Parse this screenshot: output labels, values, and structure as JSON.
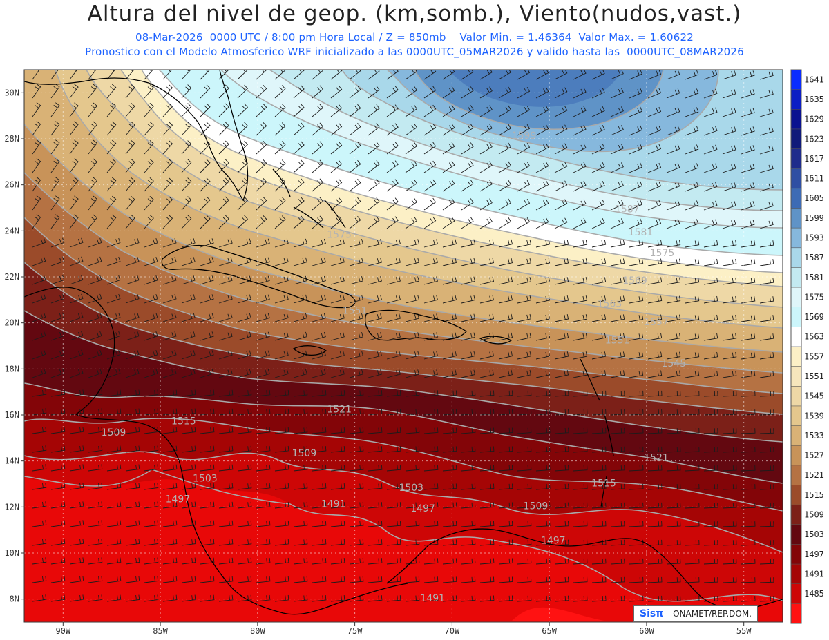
{
  "header": {
    "title": "Altura del nivel de geop. (km,somb.), Viento(nudos,vast.)",
    "line1": "08-Mar-2026  0000 UTC / 8:00 pm Hora Local / Z = 850mb    Valor Min. = 1.46364  Valor Max. = 1.60622",
    "line2": "Pronostico con el Modelo Atmosferico WRF inicializado a las 0000UTC_05MAR2026 y valido hasta las  0000UTC_08MAR2026"
  },
  "map_data": {
    "type": "contour-map",
    "level": "850mb",
    "lon_range": [
      -92,
      -53
    ],
    "lat_range": [
      7,
      31
    ],
    "lon_ticks": [
      "90W",
      "85W",
      "80W",
      "75W",
      "70W",
      "65W",
      "60W",
      "55W"
    ],
    "lat_ticks": [
      "30N",
      "28N",
      "26N",
      "24N",
      "22N",
      "20N",
      "18N",
      "16N",
      "14N",
      "12N",
      "10N",
      "8N"
    ],
    "grid": true,
    "contour_labels": [
      {
        "lon": -61.0,
        "lat": 24.8,
        "text": "1587"
      },
      {
        "lon": -66.3,
        "lat": 28.0,
        "text": "1599"
      },
      {
        "lon": -60.3,
        "lat": 23.8,
        "text": "1581"
      },
      {
        "lon": -59.2,
        "lat": 22.9,
        "text": "1575"
      },
      {
        "lon": -75.8,
        "lat": 23.7,
        "text": "1575"
      },
      {
        "lon": -60.6,
        "lat": 21.7,
        "text": "1569"
      },
      {
        "lon": -61.9,
        "lat": 20.7,
        "text": "1563"
      },
      {
        "lon": -59.5,
        "lat": 19.9,
        "text": "1557"
      },
      {
        "lon": -61.5,
        "lat": 19.1,
        "text": "1551"
      },
      {
        "lon": -75.0,
        "lat": 20.4,
        "text": "1551"
      },
      {
        "lon": -58.6,
        "lat": 18.1,
        "text": "1545"
      },
      {
        "lon": -75.8,
        "lat": 16.1,
        "text": "1521"
      },
      {
        "lon": -59.5,
        "lat": 14.0,
        "text": "1521"
      },
      {
        "lon": -62.2,
        "lat": 12.9,
        "text": "1515"
      },
      {
        "lon": -83.8,
        "lat": 15.6,
        "text": "1515"
      },
      {
        "lon": -87.4,
        "lat": 15.1,
        "text": "1509"
      },
      {
        "lon": -77.6,
        "lat": 14.2,
        "text": "1509"
      },
      {
        "lon": -65.7,
        "lat": 11.9,
        "text": "1509"
      },
      {
        "lon": -82.7,
        "lat": 13.1,
        "text": "1503"
      },
      {
        "lon": -72.1,
        "lat": 12.7,
        "text": "1503"
      },
      {
        "lon": -84.1,
        "lat": 12.2,
        "text": "1497"
      },
      {
        "lon": -71.5,
        "lat": 11.8,
        "text": "1497"
      },
      {
        "lon": -64.8,
        "lat": 10.4,
        "text": "1497"
      },
      {
        "lon": -76.1,
        "lat": 12.0,
        "text": "1491"
      },
      {
        "lon": -71.0,
        "lat": 7.9,
        "text": "1491"
      }
    ],
    "colorbar": {
      "labels": [
        "1641",
        "1635",
        "1629",
        "1623",
        "1617",
        "1611",
        "1605",
        "1599",
        "1593",
        "1587",
        "1581",
        "1575",
        "1569",
        "1563",
        "1557",
        "1551",
        "1545",
        "1539",
        "1533",
        "1527",
        "1521",
        "1515",
        "1509",
        "1503",
        "1497",
        "1491",
        "1485"
      ],
      "colors": [
        "#0a2cff",
        "#0c1ec4",
        "#0a1290",
        "#101a7a",
        "#1f2c8c",
        "#2f4fa3",
        "#3d6bb5",
        "#5f93c7",
        "#86b8dd",
        "#a9d8ea",
        "#c3eaf1",
        "#dff6fa",
        "#ccf6fb",
        "#ffffff",
        "#fcf0c6",
        "#f6e6bc",
        "#eed8a6",
        "#e4c78d",
        "#d9b276",
        "#c89359",
        "#b57243",
        "#9b4b2a",
        "#7c2018",
        "#630810",
        "#830508",
        "#a50505",
        "#cd0606",
        "#ff1212"
      ]
    }
  },
  "credit": {
    "logo": "Sisπ",
    "text": "– ONAMET/REP.DOM."
  }
}
